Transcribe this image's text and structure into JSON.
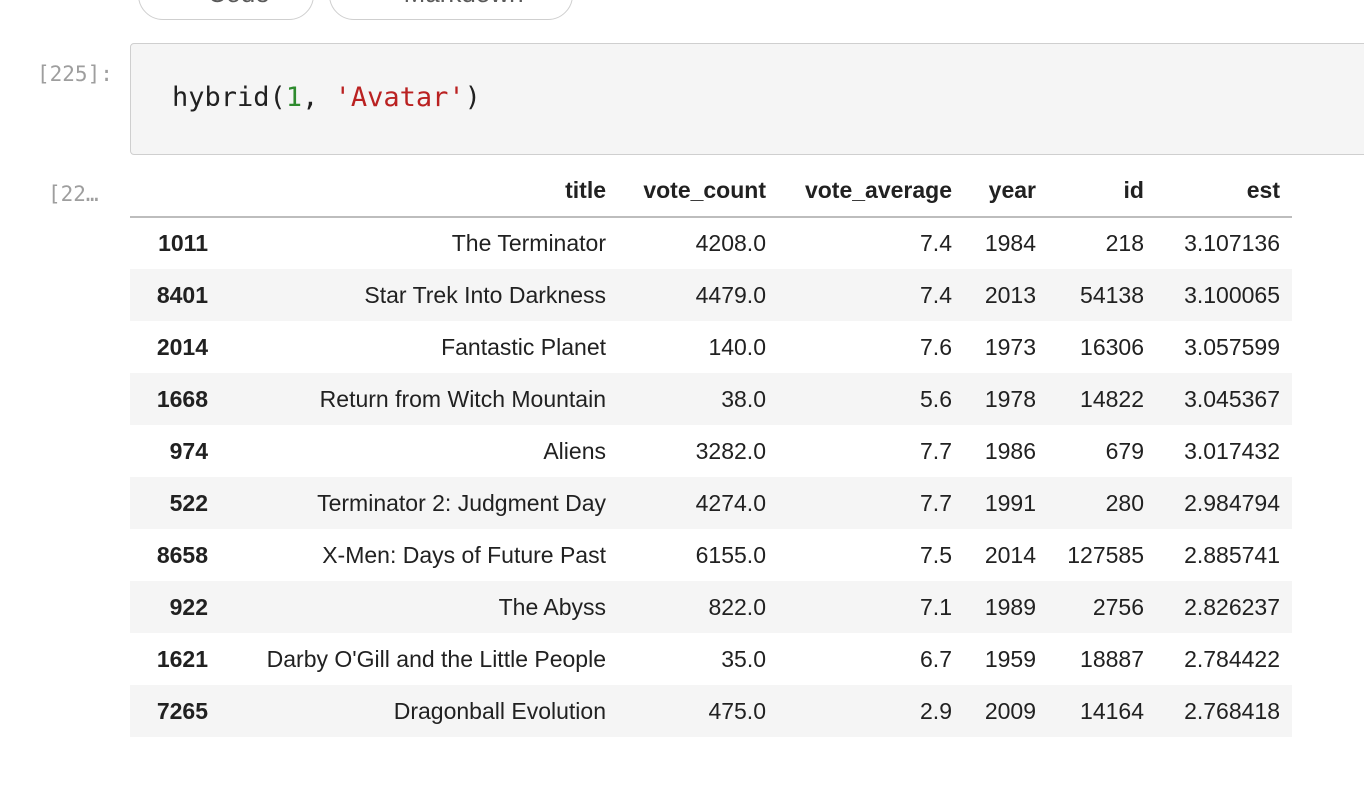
{
  "toolbar": {
    "add_code_label": "Code",
    "add_markdown_label": "Markdown",
    "plus_glyph": "+"
  },
  "cell": {
    "input_prompt": "[225]:",
    "output_prompt": "[22…",
    "code": {
      "func": "hybrid(",
      "arg_num": "1",
      "sep": ", ",
      "arg_str": "'Avatar'",
      "close": ")"
    }
  },
  "table": {
    "columns": [
      "",
      "title",
      "vote_count",
      "vote_average",
      "year",
      "id",
      "est"
    ],
    "rows": [
      {
        "index": "1011",
        "title": "The Terminator",
        "vote_count": "4208.0",
        "vote_average": "7.4",
        "year": "1984",
        "id": "218",
        "est": "3.107136"
      },
      {
        "index": "8401",
        "title": "Star Trek Into Darkness",
        "vote_count": "4479.0",
        "vote_average": "7.4",
        "year": "2013",
        "id": "54138",
        "est": "3.100065"
      },
      {
        "index": "2014",
        "title": "Fantastic Planet",
        "vote_count": "140.0",
        "vote_average": "7.6",
        "year": "1973",
        "id": "16306",
        "est": "3.057599"
      },
      {
        "index": "1668",
        "title": "Return from Witch Mountain",
        "vote_count": "38.0",
        "vote_average": "5.6",
        "year": "1978",
        "id": "14822",
        "est": "3.045367"
      },
      {
        "index": "974",
        "title": "Aliens",
        "vote_count": "3282.0",
        "vote_average": "7.7",
        "year": "1986",
        "id": "679",
        "est": "3.017432"
      },
      {
        "index": "522",
        "title": "Terminator 2: Judgment Day",
        "vote_count": "4274.0",
        "vote_average": "7.7",
        "year": "1991",
        "id": "280",
        "est": "2.984794"
      },
      {
        "index": "8658",
        "title": "X-Men: Days of Future Past",
        "vote_count": "6155.0",
        "vote_average": "7.5",
        "year": "2014",
        "id": "127585",
        "est": "2.885741"
      },
      {
        "index": "922",
        "title": "The Abyss",
        "vote_count": "822.0",
        "vote_average": "7.1",
        "year": "1989",
        "id": "2756",
        "est": "2.826237"
      },
      {
        "index": "1621",
        "title": "Darby O'Gill and the Little People",
        "vote_count": "35.0",
        "vote_average": "6.7",
        "year": "1959",
        "id": "18887",
        "est": "2.784422"
      },
      {
        "index": "7265",
        "title": "Dragonball Evolution",
        "vote_count": "475.0",
        "vote_average": "2.9",
        "year": "2009",
        "id": "14164",
        "est": "2.768418"
      }
    ]
  },
  "colors": {
    "number_token": "#2e8b2e",
    "string_token": "#ba2121",
    "cell_background": "#f5f5f5",
    "prompt": "#9e9e9e"
  }
}
